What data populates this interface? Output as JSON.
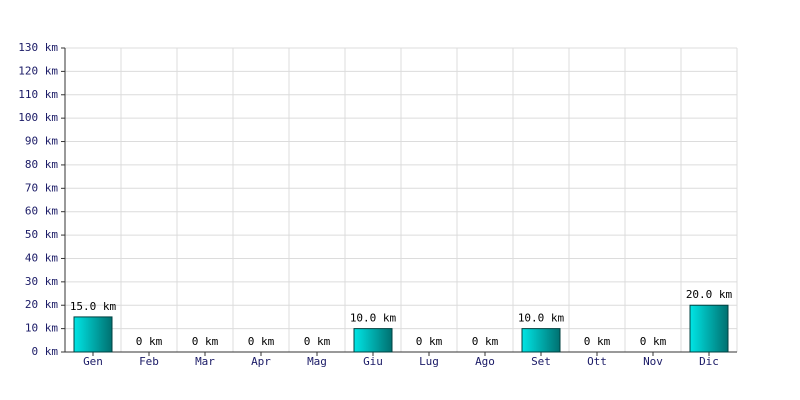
{
  "chart_data": {
    "type": "bar",
    "categories": [
      "Gen",
      "Feb",
      "Mar",
      "Apr",
      "Mag",
      "Giu",
      "Lug",
      "Ago",
      "Set",
      "Ott",
      "Nov",
      "Dic"
    ],
    "values": [
      15,
      0,
      0,
      0,
      0,
      10,
      0,
      0,
      10,
      0,
      0,
      20
    ],
    "value_labels": [
      "15.0 km",
      "0 km",
      "0 km",
      "0 km",
      "0 km",
      "10.0 km",
      "0 km",
      "0 km",
      "10.0 km",
      "0 km",
      "0 km",
      "20.0 km"
    ],
    "color": "#00e5e5",
    "ylim": [
      0,
      130
    ],
    "yticks": [
      {
        "value": 0,
        "label": "0 km"
      },
      {
        "value": 10,
        "label": "10 km"
      },
      {
        "value": 20,
        "label": "20 km"
      },
      {
        "value": 30,
        "label": "30 km"
      },
      {
        "value": 40,
        "label": "40 km"
      },
      {
        "value": 50,
        "label": "50 km"
      },
      {
        "value": 60,
        "label": "60 km"
      },
      {
        "value": 70,
        "label": "70 km"
      },
      {
        "value": 80,
        "label": "80 km"
      },
      {
        "value": 90,
        "label": "90 km"
      },
      {
        "value": 100,
        "label": "100 km"
      },
      {
        "value": 110,
        "label": "110 km"
      },
      {
        "value": 120,
        "label": "120 km"
      },
      {
        "value": 130,
        "label": "130 km"
      }
    ],
    "grid": true
  }
}
